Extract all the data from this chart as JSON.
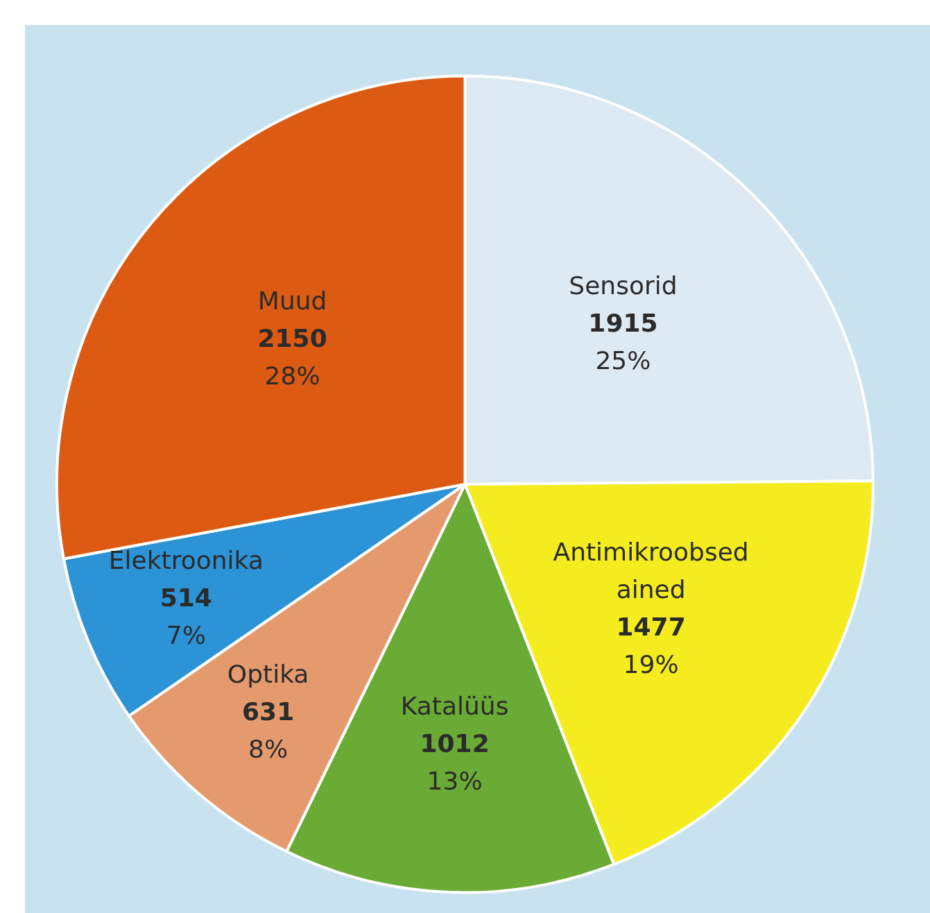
{
  "chart_data": {
    "type": "pie",
    "categories": [
      "Sensorid",
      "Antimikroobsed ained",
      "Katalüüs",
      "Optika",
      "Elektroonika",
      "Muud"
    ],
    "values": [
      1915,
      1477,
      1012,
      631,
      514,
      2150
    ],
    "colors": [
      "#dde9f3",
      "#f4ec1f",
      "#6aab35",
      "#e59a6e",
      "#2b93d6",
      "#dd5a12"
    ],
    "value_labels": [
      "1915\n25%",
      "1477\n19%",
      "1012\n13%",
      "631\n8%",
      "514\n7%",
      "2150\n28%"
    ],
    "legend": false
  }
}
